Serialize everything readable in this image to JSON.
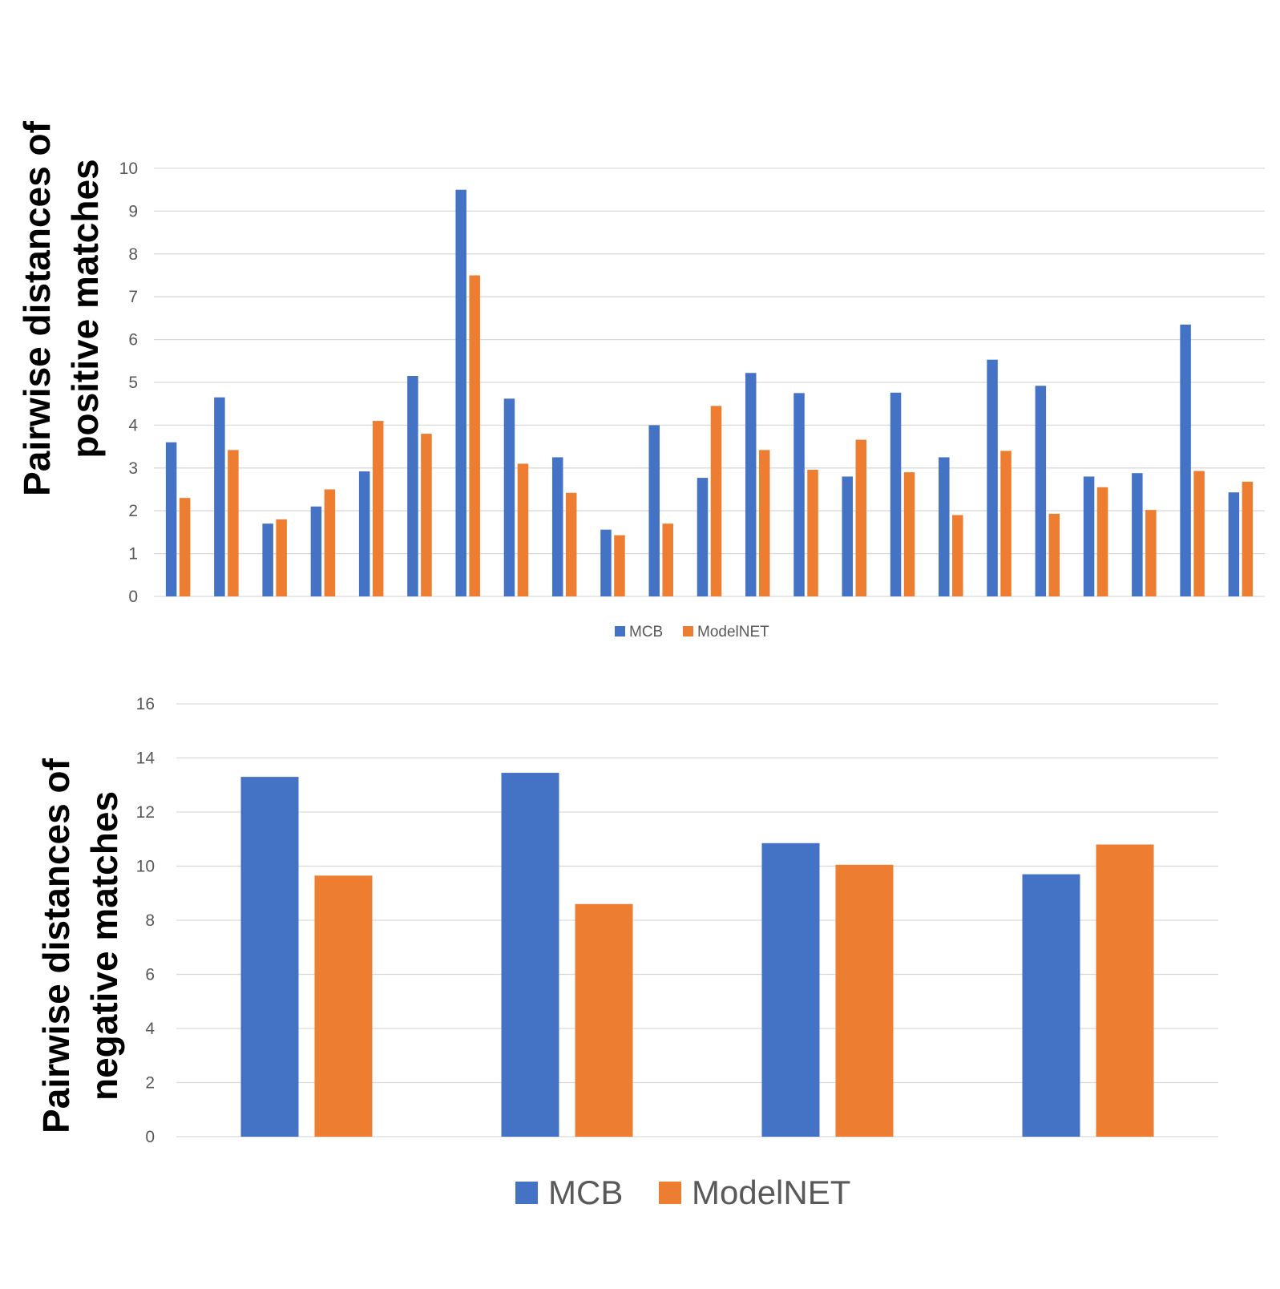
{
  "colors": {
    "mcb": "#4472C4",
    "modelnet": "#ED7D31"
  },
  "chart_data": [
    {
      "type": "bar",
      "ylabel_lines": [
        "Pairwise distances of",
        "positive matches"
      ],
      "ylim": [
        0,
        10
      ],
      "yticks": [
        0,
        1,
        2,
        3,
        4,
        5,
        6,
        7,
        8,
        9,
        10
      ],
      "grid": true,
      "legend_position": "bottom-center",
      "series": [
        {
          "name": "MCB",
          "values": [
            3.6,
            4.65,
            1.7,
            2.1,
            2.92,
            5.15,
            9.5,
            4.62,
            3.25,
            1.56,
            4.0,
            2.77,
            5.22,
            4.75,
            2.8,
            4.76,
            3.25,
            5.53,
            4.92,
            2.8,
            2.88,
            6.35,
            2.43
          ]
        },
        {
          "name": "ModelNET",
          "values": [
            2.3,
            3.42,
            1.8,
            2.5,
            4.1,
            3.8,
            7.5,
            3.1,
            2.42,
            1.43,
            1.7,
            4.45,
            3.42,
            2.96,
            3.66,
            2.9,
            1.9,
            3.4,
            1.93,
            2.55,
            2.02,
            2.93,
            2.68
          ]
        }
      ]
    },
    {
      "type": "bar",
      "ylabel_lines": [
        "Pairwise distances of",
        "negative matches"
      ],
      "ylim": [
        0,
        16
      ],
      "yticks": [
        0,
        2,
        4,
        6,
        8,
        10,
        12,
        14,
        16
      ],
      "grid": true,
      "legend_position": "bottom-center",
      "series": [
        {
          "name": "MCB",
          "values": [
            13.3,
            13.45,
            10.85,
            9.7
          ]
        },
        {
          "name": "ModelNET",
          "values": [
            9.65,
            8.6,
            10.05,
            10.8
          ]
        }
      ]
    }
  ]
}
